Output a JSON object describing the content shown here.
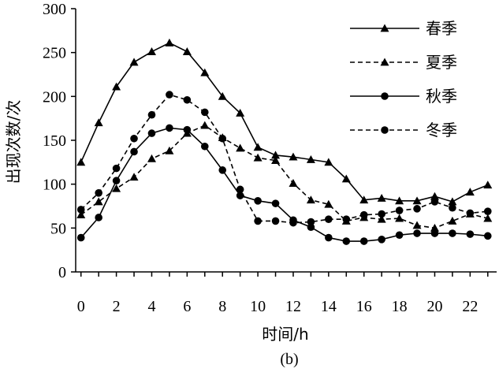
{
  "chart_data": {
    "type": "line",
    "title": "",
    "caption": "(b)",
    "xlabel": "时间/h",
    "ylabel": "出现次数/次",
    "xlim": [
      -0.3,
      23.5
    ],
    "ylim": [
      0,
      300
    ],
    "x_ticks": [
      0,
      2,
      4,
      6,
      8,
      10,
      12,
      14,
      16,
      18,
      20,
      22
    ],
    "y_ticks": [
      0,
      50,
      100,
      150,
      200,
      250,
      300
    ],
    "grid": false,
    "legend_position": "top-right",
    "x": [
      0,
      1,
      2,
      3,
      4,
      5,
      6,
      7,
      8,
      9,
      10,
      11,
      12,
      13,
      14,
      15,
      16,
      17,
      18,
      19,
      20,
      21,
      22,
      23
    ],
    "series": [
      {
        "name": "春季",
        "line_style": "solid",
        "marker": "triangle",
        "values": [
          125,
          170,
          211,
          239,
          251,
          261,
          251,
          227,
          200,
          181,
          142,
          133,
          131,
          128,
          125,
          106,
          82,
          84,
          81,
          81,
          86,
          80,
          91,
          99
        ]
      },
      {
        "name": "夏季",
        "line_style": "dashed",
        "marker": "triangle",
        "values": [
          65,
          80,
          95,
          108,
          129,
          138,
          158,
          167,
          153,
          141,
          130,
          127,
          101,
          82,
          77,
          58,
          62,
          60,
          61,
          53,
          50,
          58,
          66,
          61
        ]
      },
      {
        "name": "秋季",
        "line_style": "solid",
        "marker": "circle",
        "values": [
          39,
          62,
          104,
          137,
          158,
          164,
          162,
          143,
          116,
          87,
          81,
          78,
          59,
          51,
          39,
          35,
          35,
          37,
          42,
          44,
          44,
          44,
          43,
          41
        ]
      },
      {
        "name": "冬季",
        "line_style": "dashed",
        "marker": "circle",
        "values": [
          71,
          90,
          118,
          152,
          179,
          202,
          196,
          182,
          152,
          94,
          58,
          58,
          56,
          57,
          60,
          60,
          65,
          66,
          70,
          72,
          80,
          73,
          67,
          69
        ]
      }
    ]
  }
}
